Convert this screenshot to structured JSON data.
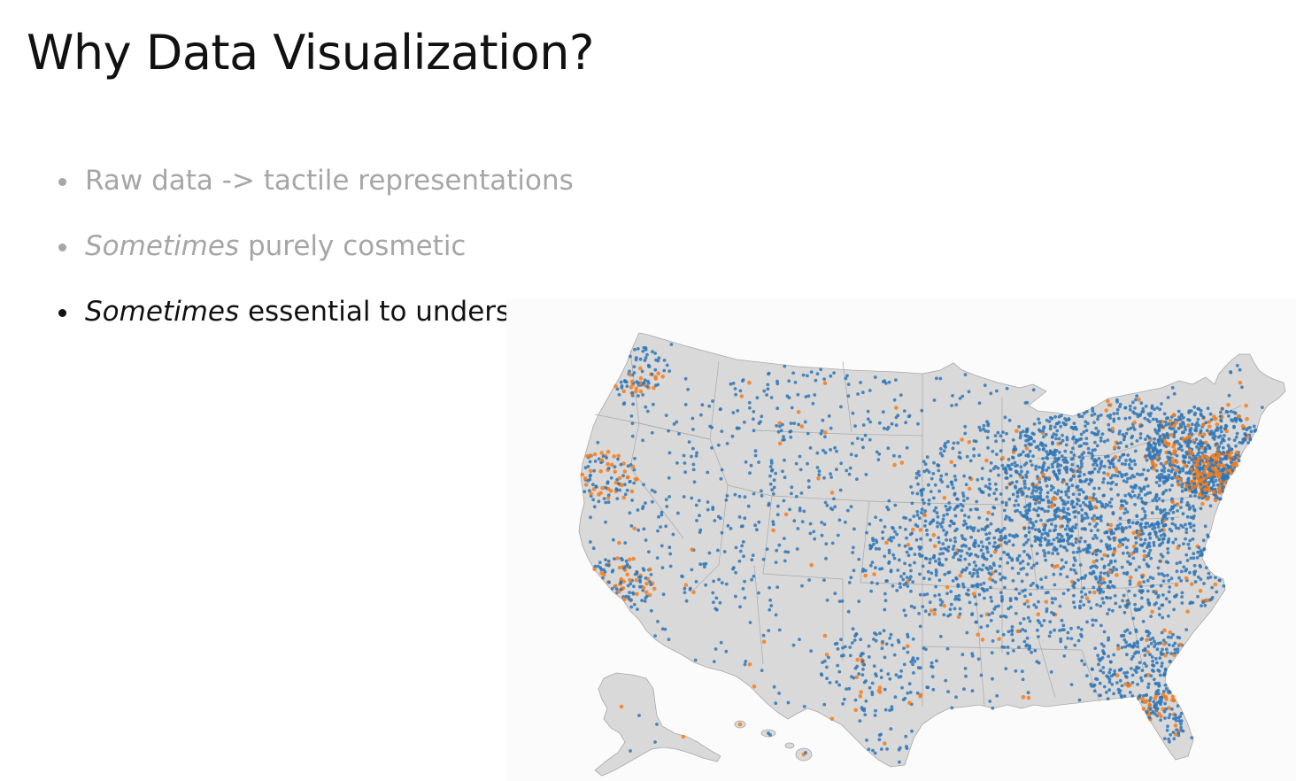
{
  "slide": {
    "title": "Why Data Visualization?",
    "bullets": [
      {
        "emphasis": "",
        "text": "Raw data -> tactile representations",
        "state": "dim"
      },
      {
        "emphasis": "Sometimes",
        "text": " purely cosmetic",
        "state": "dim"
      },
      {
        "emphasis": "Sometimes",
        "text": " essential to understanding data",
        "state": "active"
      }
    ]
  },
  "map": {
    "colors": {
      "land": "#d9d9d9",
      "border": "#a8a8a8",
      "point_primary": "#2e75b6",
      "point_highlight": "#f47c1b"
    }
  }
}
